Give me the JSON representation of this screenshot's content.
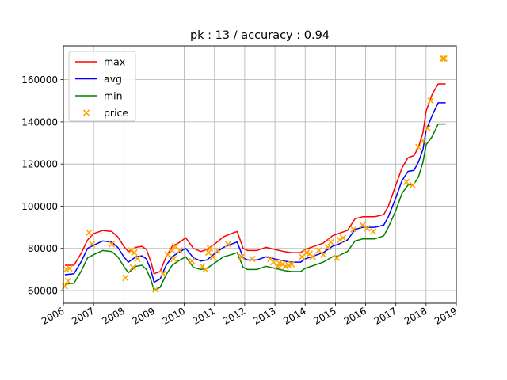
{
  "chart_data": {
    "type": "line",
    "title": "pk : 13 / accuracy : 0.94",
    "xlabel": "",
    "ylabel": "",
    "xlim": [
      2006.0,
      2019.0
    ],
    "ylim": [
      54000,
      176000
    ],
    "grid": true,
    "legend": {
      "position": "top-left"
    },
    "x_ticks": [
      "2006",
      "2007",
      "2008",
      "2009",
      "2010",
      "2011",
      "2012",
      "2013",
      "2014",
      "2015",
      "2016",
      "2017",
      "2018",
      "2019"
    ],
    "y_ticks": [
      "60000",
      "80000",
      "100000",
      "120000",
      "140000",
      "160000"
    ],
    "series": [
      {
        "name": "max",
        "style": "line",
        "color": "#ff0000",
        "points": [
          [
            2006.05,
            72000
          ],
          [
            2006.35,
            72000
          ],
          [
            2006.6,
            78000
          ],
          [
            2006.8,
            84000
          ],
          [
            2007.0,
            87000
          ],
          [
            2007.3,
            88500
          ],
          [
            2007.6,
            88000
          ],
          [
            2007.8,
            85500
          ],
          [
            2008.0,
            81000
          ],
          [
            2008.15,
            78500
          ],
          [
            2008.4,
            80500
          ],
          [
            2008.6,
            81000
          ],
          [
            2008.75,
            79500
          ],
          [
            2008.9,
            73500
          ],
          [
            2009.0,
            68000
          ],
          [
            2009.2,
            69000
          ],
          [
            2009.4,
            76000
          ],
          [
            2009.6,
            81000
          ],
          [
            2009.8,
            82500
          ],
          [
            2010.05,
            85000
          ],
          [
            2010.3,
            80000
          ],
          [
            2010.55,
            78500
          ],
          [
            2010.75,
            79500
          ],
          [
            2011.0,
            82000
          ],
          [
            2011.3,
            85500
          ],
          [
            2011.55,
            87000
          ],
          [
            2011.75,
            88000
          ],
          [
            2011.95,
            80000
          ],
          [
            2012.1,
            79000
          ],
          [
            2012.4,
            79000
          ],
          [
            2012.7,
            80500
          ],
          [
            2013.0,
            79500
          ],
          [
            2013.3,
            78500
          ],
          [
            2013.55,
            78000
          ],
          [
            2013.85,
            78000
          ],
          [
            2014.0,
            79500
          ],
          [
            2014.3,
            81000
          ],
          [
            2014.6,
            82500
          ],
          [
            2014.9,
            86000
          ],
          [
            2015.1,
            87000
          ],
          [
            2015.4,
            88500
          ],
          [
            2015.65,
            94000
          ],
          [
            2015.9,
            95000
          ],
          [
            2016.3,
            95000
          ],
          [
            2016.6,
            96000
          ],
          [
            2016.75,
            100000
          ],
          [
            2017.0,
            110000
          ],
          [
            2017.2,
            118000
          ],
          [
            2017.4,
            123000
          ],
          [
            2017.6,
            124000
          ],
          [
            2017.75,
            128000
          ],
          [
            2017.9,
            135000
          ],
          [
            2018.0,
            145000
          ],
          [
            2018.2,
            153000
          ],
          [
            2018.4,
            158000
          ],
          [
            2018.65,
            158000
          ]
        ]
      },
      {
        "name": "avg",
        "style": "line",
        "color": "#0000ff",
        "points": [
          [
            2006.05,
            67500
          ],
          [
            2006.35,
            68000
          ],
          [
            2006.6,
            74000
          ],
          [
            2006.8,
            80000
          ],
          [
            2007.0,
            81500
          ],
          [
            2007.3,
            83500
          ],
          [
            2007.6,
            83000
          ],
          [
            2007.8,
            80500
          ],
          [
            2008.0,
            76000
          ],
          [
            2008.15,
            73500
          ],
          [
            2008.4,
            76000
          ],
          [
            2008.6,
            76500
          ],
          [
            2008.75,
            75000
          ],
          [
            2008.9,
            69500
          ],
          [
            2009.0,
            64000
          ],
          [
            2009.2,
            65500
          ],
          [
            2009.4,
            72000
          ],
          [
            2009.6,
            76000
          ],
          [
            2009.8,
            78000
          ],
          [
            2010.05,
            80000
          ],
          [
            2010.3,
            75500
          ],
          [
            2010.55,
            74000
          ],
          [
            2010.75,
            74500
          ],
          [
            2011.0,
            77500
          ],
          [
            2011.3,
            80500
          ],
          [
            2011.55,
            82000
          ],
          [
            2011.75,
            83000
          ],
          [
            2011.95,
            75500
          ],
          [
            2012.1,
            74500
          ],
          [
            2012.4,
            74500
          ],
          [
            2012.7,
            76000
          ],
          [
            2013.0,
            75000
          ],
          [
            2013.3,
            74000
          ],
          [
            2013.55,
            73500
          ],
          [
            2013.85,
            73500
          ],
          [
            2014.0,
            75000
          ],
          [
            2014.3,
            76500
          ],
          [
            2014.6,
            78000
          ],
          [
            2014.9,
            81000
          ],
          [
            2015.1,
            82000
          ],
          [
            2015.4,
            84000
          ],
          [
            2015.65,
            89000
          ],
          [
            2015.9,
            90000
          ],
          [
            2016.3,
            90000
          ],
          [
            2016.6,
            91000
          ],
          [
            2016.75,
            95000
          ],
          [
            2017.0,
            104000
          ],
          [
            2017.2,
            112000
          ],
          [
            2017.4,
            116500
          ],
          [
            2017.6,
            117000
          ],
          [
            2017.75,
            121000
          ],
          [
            2017.9,
            127000
          ],
          [
            2018.0,
            136000
          ],
          [
            2018.2,
            143000
          ],
          [
            2018.4,
            149000
          ],
          [
            2018.65,
            149000
          ]
        ]
      },
      {
        "name": "min",
        "style": "line",
        "color": "#008000",
        "points": [
          [
            2006.05,
            63000
          ],
          [
            2006.35,
            63500
          ],
          [
            2006.6,
            69500
          ],
          [
            2006.8,
            75500
          ],
          [
            2007.0,
            77000
          ],
          [
            2007.3,
            79000
          ],
          [
            2007.6,
            78500
          ],
          [
            2007.8,
            76000
          ],
          [
            2008.0,
            71500
          ],
          [
            2008.15,
            68500
          ],
          [
            2008.4,
            71500
          ],
          [
            2008.6,
            72000
          ],
          [
            2008.75,
            70000
          ],
          [
            2008.9,
            65000
          ],
          [
            2009.0,
            60000
          ],
          [
            2009.2,
            61500
          ],
          [
            2009.4,
            67500
          ],
          [
            2009.6,
            72000
          ],
          [
            2009.8,
            74000
          ],
          [
            2010.05,
            76000
          ],
          [
            2010.3,
            71000
          ],
          [
            2010.55,
            70000
          ],
          [
            2010.75,
            70500
          ],
          [
            2011.0,
            73000
          ],
          [
            2011.3,
            76000
          ],
          [
            2011.55,
            77000
          ],
          [
            2011.75,
            78000
          ],
          [
            2011.95,
            71000
          ],
          [
            2012.1,
            70000
          ],
          [
            2012.4,
            70000
          ],
          [
            2012.7,
            71500
          ],
          [
            2013.0,
            70500
          ],
          [
            2013.3,
            69500
          ],
          [
            2013.55,
            69000
          ],
          [
            2013.85,
            69000
          ],
          [
            2014.0,
            70500
          ],
          [
            2014.3,
            72000
          ],
          [
            2014.6,
            73500
          ],
          [
            2014.9,
            76000
          ],
          [
            2015.1,
            76500
          ],
          [
            2015.4,
            78500
          ],
          [
            2015.65,
            83500
          ],
          [
            2015.9,
            84500
          ],
          [
            2016.3,
            84500
          ],
          [
            2016.6,
            86000
          ],
          [
            2016.75,
            90000
          ],
          [
            2017.0,
            98000
          ],
          [
            2017.2,
            106000
          ],
          [
            2017.4,
            110000
          ],
          [
            2017.6,
            110500
          ],
          [
            2017.75,
            114000
          ],
          [
            2017.9,
            121000
          ],
          [
            2018.0,
            129000
          ],
          [
            2018.2,
            133000
          ],
          [
            2018.4,
            139000
          ],
          [
            2018.65,
            139000
          ]
        ]
      },
      {
        "name": "price",
        "style": "scatter",
        "marker": "x",
        "color": "#ffa500",
        "points": [
          [
            2006.05,
            62000
          ],
          [
            2006.1,
            70000
          ],
          [
            2006.15,
            64500
          ],
          [
            2006.2,
            70500
          ],
          [
            2006.85,
            87500
          ],
          [
            2006.95,
            82000
          ],
          [
            2007.6,
            82000
          ],
          [
            2008.05,
            66000
          ],
          [
            2008.25,
            79000
          ],
          [
            2008.3,
            71000
          ],
          [
            2008.35,
            78000
          ],
          [
            2008.45,
            75000
          ],
          [
            2009.05,
            60500
          ],
          [
            2009.3,
            68000
          ],
          [
            2009.45,
            77000
          ],
          [
            2009.6,
            79000
          ],
          [
            2009.65,
            75000
          ],
          [
            2009.7,
            81000
          ],
          [
            2009.85,
            79000
          ],
          [
            2010.25,
            74000
          ],
          [
            2010.6,
            71500
          ],
          [
            2010.7,
            70000
          ],
          [
            2010.8,
            78000
          ],
          [
            2010.85,
            80000
          ],
          [
            2010.95,
            76000
          ],
          [
            2011.1,
            79000
          ],
          [
            2011.45,
            82000
          ],
          [
            2011.9,
            76000
          ],
          [
            2012.25,
            75000
          ],
          [
            2012.85,
            75000
          ],
          [
            2012.95,
            73500
          ],
          [
            2013.1,
            71500
          ],
          [
            2013.15,
            73000
          ],
          [
            2013.25,
            72500
          ],
          [
            2013.35,
            71500
          ],
          [
            2013.45,
            72000
          ],
          [
            2013.55,
            72500
          ],
          [
            2013.9,
            76000
          ],
          [
            2014.05,
            78000
          ],
          [
            2014.15,
            77500
          ],
          [
            2014.25,
            76000
          ],
          [
            2014.45,
            79000
          ],
          [
            2014.6,
            77000
          ],
          [
            2014.75,
            80500
          ],
          [
            2014.85,
            83000
          ],
          [
            2015.05,
            75500
          ],
          [
            2015.15,
            84000
          ],
          [
            2015.25,
            85000
          ],
          [
            2015.6,
            89000
          ],
          [
            2015.9,
            91000
          ],
          [
            2016.05,
            89500
          ],
          [
            2016.25,
            88000
          ],
          [
            2017.35,
            111500
          ],
          [
            2017.55,
            110000
          ],
          [
            2017.75,
            128000
          ],
          [
            2017.9,
            131000
          ],
          [
            2018.05,
            137000
          ],
          [
            2018.15,
            150000
          ],
          [
            2018.55,
            170000
          ],
          [
            2018.6,
            170000
          ]
        ]
      }
    ]
  }
}
